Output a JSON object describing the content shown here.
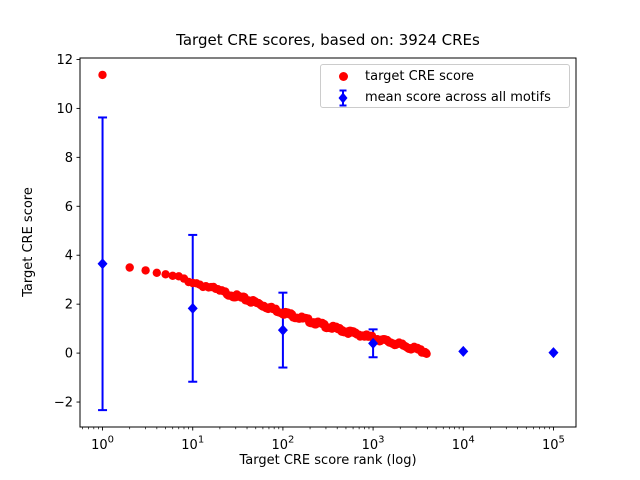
{
  "figure": {
    "background_color": "#ffffff",
    "text_color": "#000000",
    "spine_color": "#000000",
    "legend_border_color": "#cccccc"
  },
  "chart_data": {
    "type": "scatter",
    "title": "Target CRE scores, based on: 3924 CREs",
    "xlabel": "Target CRE score rank (log)",
    "ylabel": "Target CRE score",
    "x_scale": "log",
    "xlim_log10": [
      -0.25,
      5.25
    ],
    "ylim": [
      -3.02,
      12.06
    ],
    "x_ticks_exponents": [
      0,
      1,
      2,
      3,
      4,
      5
    ],
    "y_ticks": [
      -2,
      0,
      2,
      4,
      6,
      8,
      10,
      12
    ],
    "grid": false,
    "legend_position": "upper right",
    "series": [
      {
        "name": "target CRE score",
        "marker": "circle",
        "color": "#ff0000",
        "n_points": 3924,
        "anchors": [
          [
            1,
            11.37
          ],
          [
            2,
            3.5
          ],
          [
            3,
            3.38
          ],
          [
            4,
            3.28
          ],
          [
            5,
            3.22
          ],
          [
            6,
            3.16
          ],
          [
            8,
            3.03
          ],
          [
            10,
            2.9
          ],
          [
            15,
            2.7
          ],
          [
            20,
            2.53
          ],
          [
            30,
            2.33
          ],
          [
            50,
            2.06
          ],
          [
            70,
            1.86
          ],
          [
            100,
            1.66
          ],
          [
            150,
            1.46
          ],
          [
            200,
            1.31
          ],
          [
            300,
            1.11
          ],
          [
            500,
            0.89
          ],
          [
            700,
            0.76
          ],
          [
            1000,
            0.62
          ],
          [
            1500,
            0.46
          ],
          [
            2000,
            0.34
          ],
          [
            3000,
            0.16
          ],
          [
            3924,
            0.03
          ]
        ]
      },
      {
        "name": "mean score across all motifs",
        "marker": "diamond",
        "color": "#0000ff",
        "x": [
          1,
          10,
          100,
          1000,
          10000,
          100000
        ],
        "means": [
          3.65,
          1.83,
          0.94,
          0.4,
          0.07,
          0.02
        ],
        "errors": [
          5.98,
          3.0,
          1.53,
          0.57,
          0.05,
          0.02
        ]
      }
    ]
  }
}
